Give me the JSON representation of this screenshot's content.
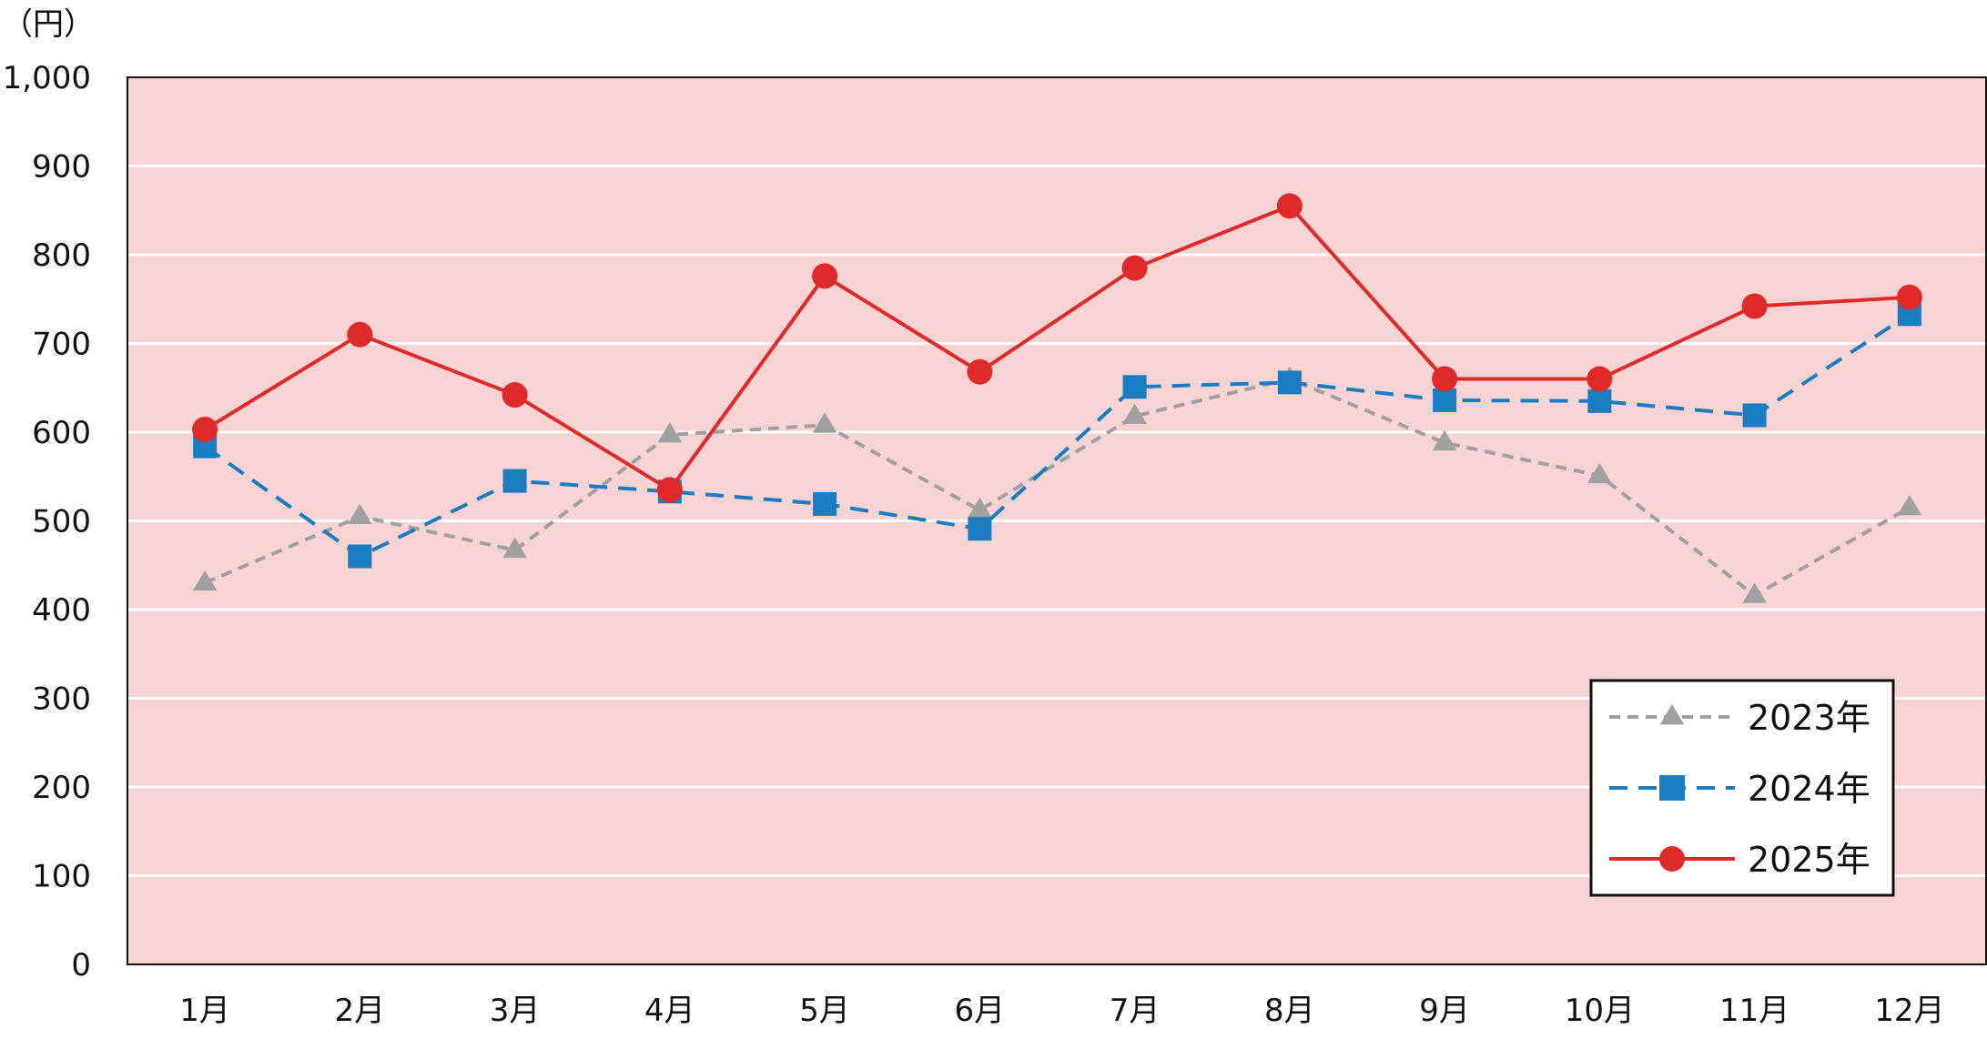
{
  "chart_data": {
    "type": "line",
    "unit_label": "（円）",
    "categories": [
      "1月",
      "2月",
      "3月",
      "4月",
      "5月",
      "6月",
      "7月",
      "8月",
      "9月",
      "10月",
      "11月",
      "12月"
    ],
    "ylim": [
      0,
      1000
    ],
    "yticks": [
      "0",
      "100",
      "200",
      "300",
      "400",
      "500",
      "600",
      "700",
      "800",
      "900",
      "1,000"
    ],
    "grid": true,
    "legend_position": "bottom-right",
    "colors": {
      "plot_background": "#f7d3d3",
      "gridline": "#ffffff"
    },
    "series": [
      {
        "name": "2023年",
        "color": "#a0a0a0",
        "marker": "triangle",
        "line_style": "dashed",
        "values": [
          430,
          505,
          467,
          597,
          608,
          512,
          618,
          660,
          588,
          551,
          416,
          515
        ]
      },
      {
        "name": "2024年",
        "color": "#1a7cc1",
        "marker": "square",
        "line_style": "dashed",
        "values": [
          584,
          460,
          545,
          533,
          519,
          491,
          651,
          656,
          636,
          635,
          619,
          733
        ]
      },
      {
        "name": "2025年",
        "color": "#e02a2a",
        "marker": "circle",
        "line_style": "solid",
        "values": [
          603,
          710,
          642,
          535,
          776,
          668,
          785,
          855,
          660,
          660,
          742,
          752
        ]
      }
    ]
  }
}
